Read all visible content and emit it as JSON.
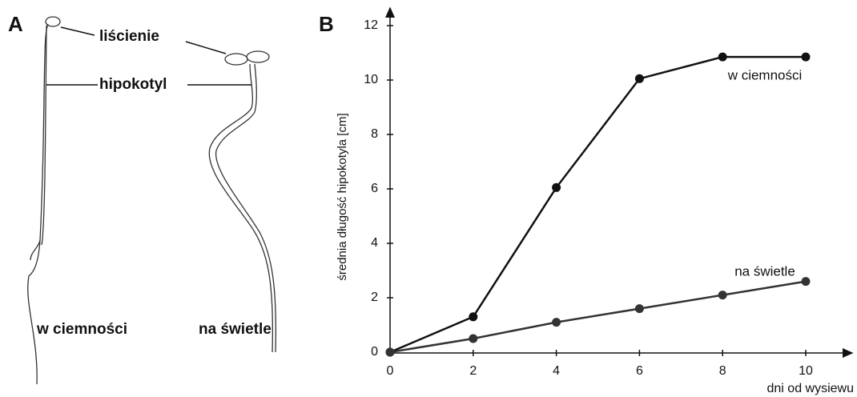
{
  "panel_a": {
    "label": "A",
    "cotyledons": "liścienie",
    "hypocotyl": "hipokotyl",
    "dark": "w ciemności",
    "light": "na świetle"
  },
  "chart_data": {
    "type": "line",
    "panel_label": "B",
    "x_label": "dni od wysiewu",
    "y_label": "średnia długość hipokotyla [cm]",
    "x": [
      0,
      2,
      4,
      6,
      8,
      10
    ],
    "series": [
      {
        "name": "w ciemności",
        "color": "#111111",
        "values": [
          0,
          1.3,
          6.05,
          10.05,
          10.85,
          10.85
        ]
      },
      {
        "name": "na świetle",
        "color": "#333333",
        "values": [
          0,
          0.5,
          1.1,
          1.6,
          2.1,
          2.6
        ]
      }
    ],
    "xlim": [
      0,
      11
    ],
    "ylim": [
      0,
      12.6
    ],
    "xticks": [
      0,
      2,
      4,
      6,
      8,
      10
    ],
    "yticks": [
      0,
      2,
      4,
      6,
      8,
      10,
      12
    ]
  }
}
